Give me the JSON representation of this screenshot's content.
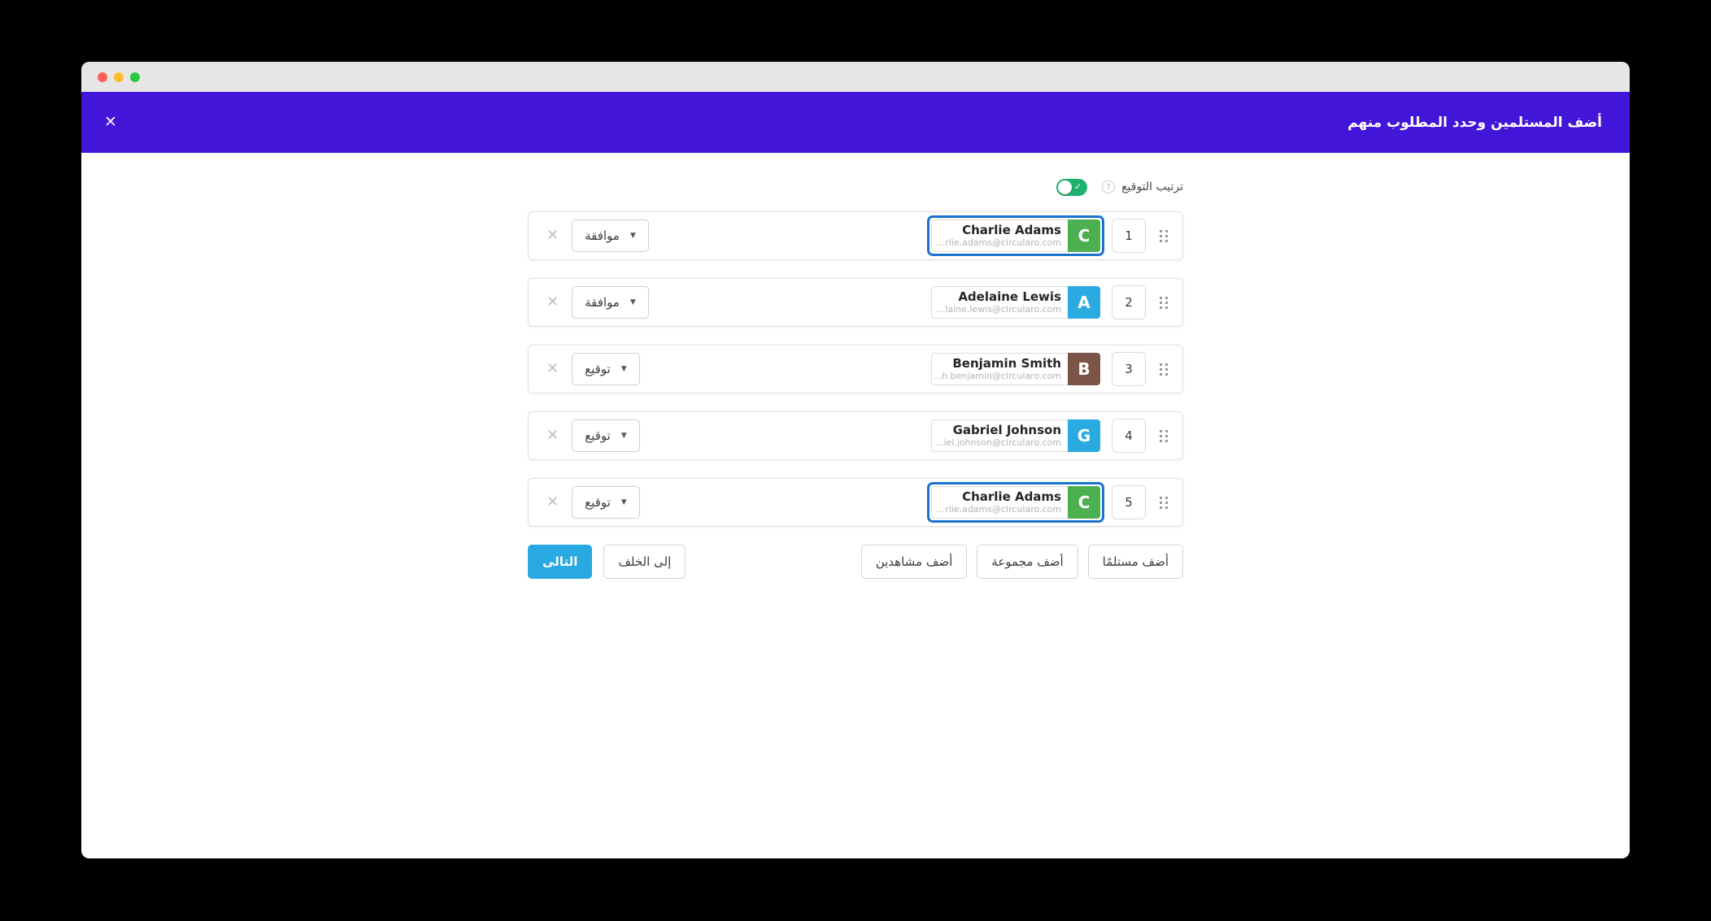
{
  "header": {
    "title": "أضف المستلمين وحدد المطلوب منهم"
  },
  "icons": {
    "close": "✕",
    "remove": "✕",
    "caret_down": "▼",
    "check": "✓",
    "help": "?"
  },
  "signing_order": {
    "label": "ترتيب التوقيع",
    "enabled": true
  },
  "recipients": [
    {
      "order": "1",
      "name": "Charlie Adams",
      "email": "...rlie.adams@circularo.com",
      "initial": "C",
      "avatar_color": "#4caf50",
      "action": "موافقة",
      "selected": true
    },
    {
      "order": "2",
      "name": "Adelaine Lewis",
      "email": "...laine.lewis@circularo.com",
      "initial": "A",
      "avatar_color": "#29abe2",
      "action": "موافقة",
      "selected": false
    },
    {
      "order": "3",
      "name": "Benjamin Smith",
      "email": "...h.benjamin@circularo.com",
      "initial": "B",
      "avatar_color": "#7a5548",
      "action": "توقيع",
      "selected": false
    },
    {
      "order": "4",
      "name": "Gabriel Johnson",
      "email": "...iel.johnson@circularo.com",
      "initial": "G",
      "avatar_color": "#29abe2",
      "action": "توقيع",
      "selected": false
    },
    {
      "order": "5",
      "name": "Charlie Adams",
      "email": "...rlie.adams@circularo.com",
      "initial": "C",
      "avatar_color": "#4caf50",
      "action": "توقيع",
      "selected": true
    }
  ],
  "footer": {
    "next": "التالى",
    "back": "إلى الخلف",
    "add_viewers": "أضف مشاهدين",
    "add_group": "أضف مجموعة",
    "add_recipient": "أضف مستلمًا"
  },
  "colors": {
    "header_purple": "#4315d8",
    "selected_blue": "#1a73cf",
    "toggle_green": "#1eb26e",
    "next_blue": "#29a9e1"
  }
}
